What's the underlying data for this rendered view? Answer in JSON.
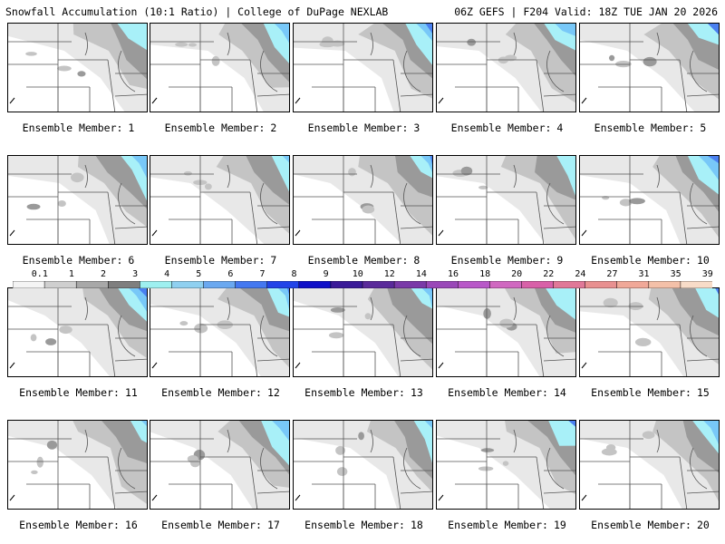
{
  "header": {
    "left": "Snowfall Accumulation (10:1 Ratio) | College of DuPage NEXLAB",
    "right": "06Z GEFS | F204 Valid: 18Z TUE JAN 20 2026"
  },
  "member_label": "Ensemble Member:",
  "members": [
    {
      "number": "1"
    },
    {
      "number": "2"
    },
    {
      "number": "3"
    },
    {
      "number": "4"
    },
    {
      "number": "5"
    },
    {
      "number": "6"
    },
    {
      "number": "7"
    },
    {
      "number": "8"
    },
    {
      "number": "9"
    },
    {
      "number": "10"
    },
    {
      "number": "11"
    },
    {
      "number": "12"
    },
    {
      "number": "13"
    },
    {
      "number": "14"
    },
    {
      "number": "15"
    },
    {
      "number": "16"
    },
    {
      "number": "17"
    },
    {
      "number": "18"
    },
    {
      "number": "19"
    },
    {
      "number": "20"
    }
  ],
  "colorbar": {
    "labels": [
      "0.1",
      "1",
      "2",
      "3",
      "4",
      "5",
      "6",
      "7",
      "8",
      "9",
      "10",
      "12",
      "14",
      "16",
      "18",
      "20",
      "22",
      "24",
      "27",
      "31",
      "35",
      "39"
    ],
    "colors": [
      "#f4f4f4",
      "#cfcfcf",
      "#a8a8a8",
      "#7f7f7f",
      "#9ef0f0",
      "#8fd0f0",
      "#6aa8f0",
      "#4478f0",
      "#2244e8",
      "#1010c8",
      "#3a1a98",
      "#5a2a9a",
      "#7a3aa8",
      "#9a48b8",
      "#b858c8",
      "#d068c0",
      "#d860a8",
      "#e07898",
      "#e89090",
      "#f0a898",
      "#f4c0a8",
      "#f8dcc8"
    ]
  },
  "colors": {
    "light_gray": "#e8e8e8",
    "mid_gray": "#c4c4c4",
    "dark_gray": "#9a9a9a",
    "darker_gray": "#7a7a7a",
    "cyan": "#a8f0f8",
    "light_blue": "#78c8f8",
    "blue": "#4a80f0",
    "dark_blue": "#2040d8",
    "purple": "#7a2a98"
  }
}
